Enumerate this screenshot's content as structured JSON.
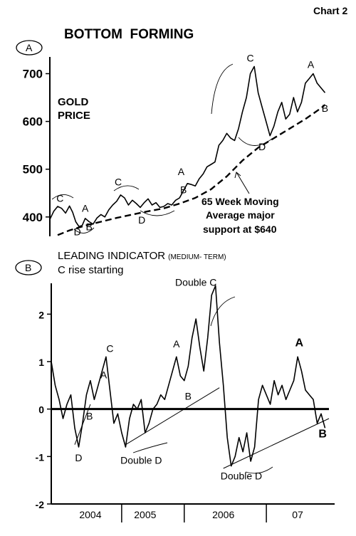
{
  "chart_label": "Chart 2",
  "main_title": "BOTTOM  FORMING",
  "chart_data": [
    {
      "type": "line",
      "panel_marker": "A",
      "title": "GOLD PRICE",
      "title_lines": [
        "GOLD",
        "PRICE"
      ],
      "yticks": [
        400,
        500,
        600,
        700
      ],
      "ylim": [
        355,
        735
      ],
      "xlim": [
        2003.75,
        2007.3
      ],
      "series": [
        {
          "name": "",
          "style": "solid",
          "x": [
            2003.75,
            2003.8,
            2003.85,
            2003.9,
            2003.95,
            2004.0,
            2004.04,
            2004.08,
            2004.12,
            2004.16,
            2004.2,
            2004.25,
            2004.3,
            2004.35,
            2004.4,
            2004.45,
            2004.5,
            2004.55,
            2004.6,
            2004.65,
            2004.7,
            2004.75,
            2004.8,
            2004.85,
            2004.9,
            2004.95,
            2005.0,
            2005.05,
            2005.1,
            2005.15,
            2005.2,
            2005.25,
            2005.3,
            2005.35,
            2005.4,
            2005.45,
            2005.5,
            2005.55,
            2005.6,
            2005.65,
            2005.7,
            2005.75,
            2005.8,
            2005.85,
            2005.9,
            2005.95,
            2006.0,
            2006.05,
            2006.1,
            2006.15,
            2006.2,
            2006.25,
            2006.3,
            2006.35,
            2006.4,
            2006.45,
            2006.5,
            2006.55,
            2006.6,
            2006.65,
            2006.7,
            2006.75,
            2006.8,
            2006.85,
            2006.9,
            2006.95,
            2007.0,
            2007.05,
            2007.1,
            2007.15,
            2007.2,
            2007.25
          ],
          "values": [
            395,
            412,
            422,
            418,
            408,
            423,
            410,
            390,
            380,
            382,
            397,
            390,
            385,
            398,
            405,
            400,
            415,
            425,
            433,
            446,
            440,
            425,
            435,
            428,
            420,
            430,
            438,
            425,
            430,
            420,
            422,
            428,
            425,
            435,
            440,
            455,
            470,
            468,
            465,
            480,
            490,
            505,
            510,
            515,
            550,
            560,
            575,
            565,
            560,
            585,
            620,
            650,
            700,
            715,
            660,
            630,
            600,
            570,
            590,
            620,
            640,
            605,
            615,
            650,
            620,
            640,
            680,
            690,
            700,
            680,
            670,
            660
          ]
        },
        {
          "name": "65 Week Moving Average",
          "style": "dashed",
          "x": [
            2003.85,
            2004.0,
            2004.2,
            2004.4,
            2004.6,
            2004.8,
            2005.0,
            2005.2,
            2005.4,
            2005.6,
            2005.8,
            2006.0,
            2006.2,
            2006.4,
            2006.6,
            2006.8,
            2007.0,
            2007.2,
            2007.25
          ],
          "values": [
            362,
            372,
            382,
            390,
            398,
            405,
            412,
            418,
            428,
            440,
            458,
            485,
            518,
            545,
            565,
            585,
            605,
            628,
            635
          ]
        }
      ],
      "annotations": [
        {
          "text": "C",
          "x": 2003.88,
          "y": 432
        },
        {
          "text": "D",
          "x": 2004.1,
          "y": 362
        },
        {
          "text": "A",
          "x": 2004.2,
          "y": 411
        },
        {
          "text": "B",
          "x": 2004.25,
          "y": 372
        },
        {
          "text": "C",
          "x": 2004.62,
          "y": 466
        },
        {
          "text": "D",
          "x": 2004.92,
          "y": 386
        },
        {
          "text": "A",
          "x": 2005.42,
          "y": 488
        },
        {
          "text": "B",
          "x": 2005.45,
          "y": 450
        },
        {
          "text": "C",
          "x": 2006.3,
          "y": 725
        },
        {
          "text": "D",
          "x": 2006.45,
          "y": 540
        },
        {
          "text": "A",
          "x": 2007.07,
          "y": 712
        },
        {
          "text": "B",
          "x": 2007.25,
          "y": 620
        }
      ],
      "callout_lines": [
        "65 Week Moving",
        "Average major",
        "support at $640"
      ]
    },
    {
      "type": "line",
      "panel_marker": "B",
      "title": "LEADING INDICATOR",
      "title_suffix": "(MEDIUM- TERM)",
      "subtitle": "C rise starting",
      "yticks": [
        -2,
        -1,
        0,
        1,
        2
      ],
      "ylim": [
        -2,
        2.65
      ],
      "xlim": [
        2003.75,
        2007.3
      ],
      "xticks": [
        "2004",
        "2005",
        "2006",
        "07"
      ],
      "xtick_positions": [
        2004.25,
        2004.95,
        2005.95,
        2006.9
      ],
      "xboundaries": [
        2004.65,
        2005.45,
        2006.5
      ],
      "series": [
        {
          "name": "",
          "style": "solid",
          "x": [
            2003.75,
            2003.8,
            2003.85,
            2003.9,
            2003.95,
            2004.0,
            2004.05,
            2004.1,
            2004.15,
            2004.2,
            2004.25,
            2004.3,
            2004.35,
            2004.4,
            2004.45,
            2004.5,
            2004.55,
            2004.6,
            2004.65,
            2004.7,
            2004.75,
            2004.8,
            2004.85,
            2004.9,
            2004.95,
            2005.0,
            2005.05,
            2005.1,
            2005.15,
            2005.2,
            2005.25,
            2005.3,
            2005.35,
            2005.4,
            2005.45,
            2005.5,
            2005.55,
            2005.6,
            2005.65,
            2005.7,
            2005.75,
            2005.8,
            2005.85,
            2005.9,
            2005.95,
            2006.0,
            2006.05,
            2006.1,
            2006.15,
            2006.2,
            2006.25,
            2006.3,
            2006.35,
            2006.4,
            2006.45,
            2006.5,
            2006.55,
            2006.6,
            2006.65,
            2006.7,
            2006.75,
            2006.8,
            2006.85,
            2006.9,
            2006.95,
            2007.0,
            2007.05,
            2007.1,
            2007.15,
            2007.2,
            2007.25
          ],
          "values": [
            1.0,
            0.5,
            0.2,
            -0.2,
            0.1,
            0.3,
            -0.4,
            -0.8,
            -0.3,
            0.3,
            0.6,
            0.2,
            0.5,
            0.8,
            1.1,
            0.4,
            -0.3,
            -0.1,
            -0.5,
            -0.8,
            -0.2,
            0.1,
            0.0,
            0.2,
            -0.5,
            -0.3,
            0.0,
            0.1,
            0.3,
            0.2,
            0.5,
            0.8,
            1.1,
            0.7,
            0.6,
            0.9,
            1.5,
            1.9,
            1.3,
            0.8,
            1.5,
            2.4,
            2.6,
            1.4,
            0.5,
            -0.6,
            -1.2,
            -1.0,
            -0.6,
            -0.9,
            -0.5,
            -1.1,
            -0.8,
            0.2,
            0.5,
            0.3,
            0.1,
            0.6,
            0.3,
            0.5,
            0.2,
            0.4,
            0.6,
            1.1,
            0.8,
            0.4,
            0.3,
            0.2,
            -0.3,
            -0.1,
            -0.4
          ]
        }
      ],
      "trendlines": [
        {
          "x": [
            2004.05,
            2004.25
          ],
          "y": [
            -0.75,
            0.1
          ]
        },
        {
          "x": [
            2004.7,
            2005.9
          ],
          "y": [
            -0.75,
            0.45
          ]
        },
        {
          "x": [
            2005.95,
            2007.3
          ],
          "y": [
            -1.25,
            -0.2
          ]
        }
      ],
      "annotations": [
        {
          "text": "D",
          "x": 2004.1,
          "y": -1.1
        },
        {
          "text": "B",
          "x": 2004.24,
          "y": -0.22
        },
        {
          "text": "A",
          "x": 2004.42,
          "y": 0.65
        },
        {
          "text": "C",
          "x": 2004.5,
          "y": 1.2
        },
        {
          "text": "Double D",
          "x": 2004.9,
          "y": -1.15
        },
        {
          "text": "A",
          "x": 2005.35,
          "y": 1.3
        },
        {
          "text": "B",
          "x": 2005.5,
          "y": 0.2
        },
        {
          "text": "Double C",
          "x": 2005.6,
          "y": 2.6
        },
        {
          "text": "Double D",
          "x": 2006.18,
          "y": -1.48
        },
        {
          "text": "A",
          "x": 2006.92,
          "y": 1.32
        },
        {
          "text": "B",
          "x": 2007.22,
          "y": -0.6
        }
      ]
    }
  ]
}
